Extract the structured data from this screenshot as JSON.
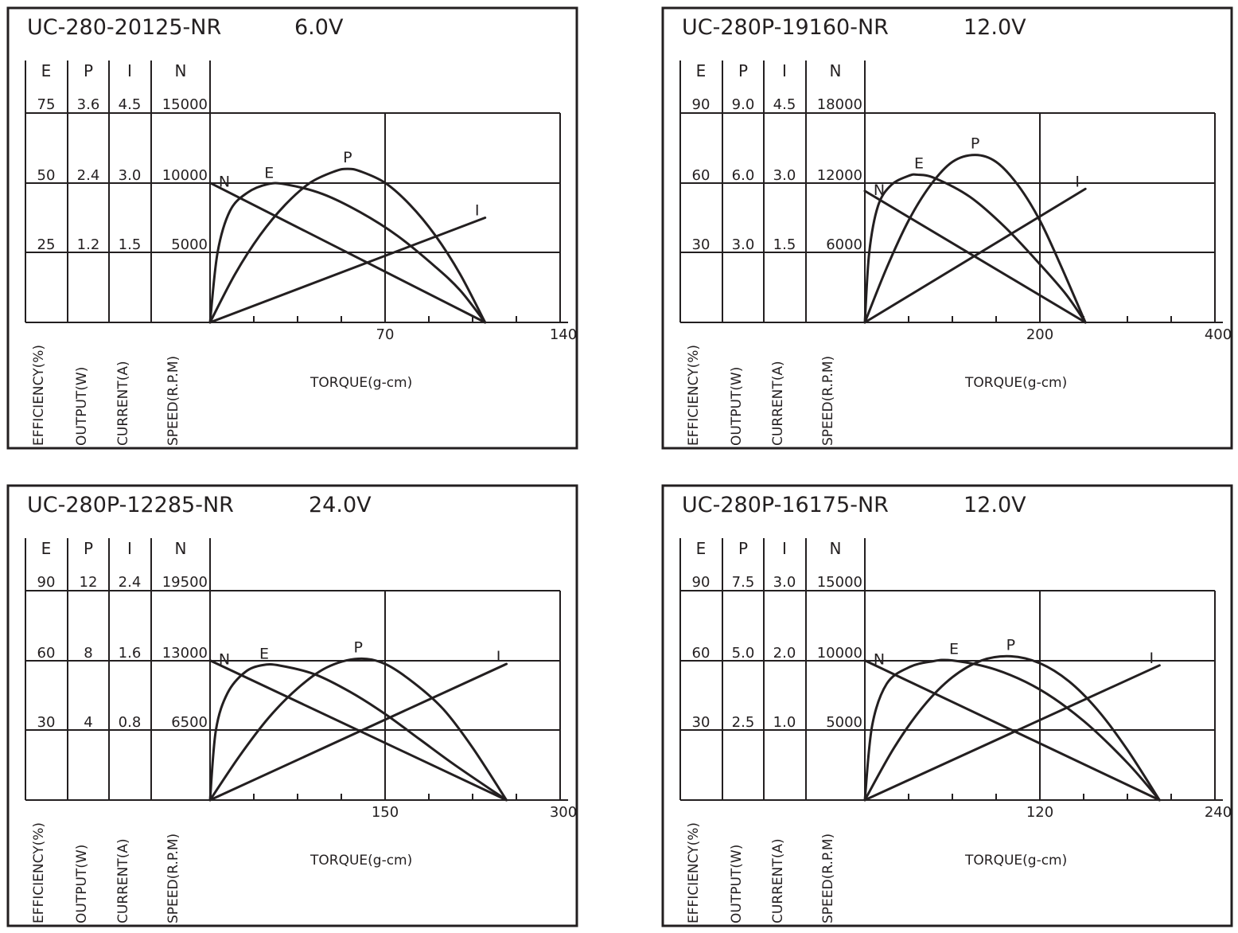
{
  "column_headers": [
    "E",
    "P",
    "I",
    "N"
  ],
  "axis_labels": [
    "EFFICIENCY(%)",
    "OUTPUT(W)",
    "CURRENT(A)",
    "SPEED(R.P.M)"
  ],
  "xlabel": "TORQUE(g-cm)",
  "curve_labels": [
    "N",
    "E",
    "P",
    "I"
  ],
  "chart_data": [
    {
      "type": "line",
      "title": "UC-280-20125-NR",
      "voltage": "6.0V",
      "xlabel": "TORQUE(g-cm)",
      "xlim": [
        0,
        140
      ],
      "x_ticks": [
        "70",
        "140"
      ],
      "scale_labels": {
        "E": [
          "25",
          "50",
          "75"
        ],
        "P": [
          "1.2",
          "2.4",
          "3.6"
        ],
        "I": [
          "1.5",
          "3.0",
          "4.5"
        ],
        "N": [
          "5000",
          "10000",
          "15000"
        ]
      },
      "ylim": {
        "E": [
          0,
          75
        ],
        "P": [
          0,
          3.6
        ],
        "I": [
          0,
          4.5
        ],
        "N": [
          0,
          15000
        ]
      },
      "series": [
        {
          "name": "N",
          "axis": "N",
          "x": [
            0,
            110
          ],
          "y": [
            10000,
            0
          ]
        },
        {
          "name": "I",
          "axis": "I",
          "x": [
            0,
            110
          ],
          "y": [
            0,
            2.25
          ]
        },
        {
          "name": "E",
          "axis": "E",
          "x": [
            0,
            3,
            8,
            15,
            23,
            30,
            45,
            60,
            75,
            90,
            100,
            110
          ],
          "y": [
            0,
            25,
            40,
            46.5,
            49.5,
            49.5,
            46,
            39.5,
            31,
            20,
            11.5,
            0
          ]
        },
        {
          "name": "P",
          "axis": "P",
          "x": [
            0,
            10,
            20,
            30,
            40,
            50,
            55,
            60,
            70,
            80,
            90,
            100,
            110
          ],
          "y": [
            0,
            0.83,
            1.5,
            2.02,
            2.4,
            2.6,
            2.64,
            2.6,
            2.4,
            2.02,
            1.5,
            0.83,
            0
          ]
        }
      ]
    },
    {
      "type": "line",
      "title": "UC-280P-19160-NR",
      "voltage": "12.0V",
      "xlabel": "TORQUE(g-cm)",
      "xlim": [
        0,
        400
      ],
      "x_ticks": [
        "200",
        "400"
      ],
      "scale_labels": {
        "E": [
          "30",
          "60",
          "90"
        ],
        "P": [
          "3.0",
          "6.0",
          "9.0"
        ],
        "I": [
          "1.5",
          "3.0",
          "4.5"
        ],
        "N": [
          "6000",
          "12000",
          "18000"
        ]
      },
      "ylim": {
        "E": [
          0,
          90
        ],
        "P": [
          0,
          9
        ],
        "I": [
          0,
          4.5
        ],
        "N": [
          0,
          18000
        ]
      },
      "series": [
        {
          "name": "N",
          "axis": "N",
          "x": [
            0,
            252
          ],
          "y": [
            11300,
            0
          ]
        },
        {
          "name": "I",
          "axis": "I",
          "x": [
            0,
            252
          ],
          "y": [
            0,
            2.87
          ]
        },
        {
          "name": "E",
          "axis": "E",
          "x": [
            0,
            5,
            15,
            30,
            50,
            60,
            80,
            120,
            160,
            200,
            230,
            252
          ],
          "y": [
            0,
            30,
            50,
            59,
            63,
            63.5,
            62,
            54,
            41,
            25,
            12,
            0
          ]
        },
        {
          "name": "P",
          "axis": "P",
          "x": [
            0,
            25,
            50,
            75,
            100,
            126,
            150,
            175,
            200,
            225,
            252
          ],
          "y": [
            0,
            2.35,
            4.38,
            5.9,
            6.9,
            7.2,
            6.9,
            5.9,
            4.38,
            2.35,
            0
          ]
        }
      ]
    },
    {
      "type": "line",
      "title": "UC-280P-12285-NR",
      "voltage": "24.0V",
      "xlabel": "TORQUE(g-cm)",
      "xlim": [
        0,
        300
      ],
      "x_ticks": [
        "150",
        "300"
      ],
      "scale_labels": {
        "E": [
          "30",
          "60",
          "90"
        ],
        "P": [
          "4",
          "8",
          "12"
        ],
        "I": [
          "0.8",
          "1.6",
          "2.4"
        ],
        "N": [
          "6500",
          "13000",
          "19500"
        ]
      },
      "ylim": {
        "E": [
          0,
          90
        ],
        "P": [
          0,
          12
        ],
        "I": [
          0,
          2.4
        ],
        "N": [
          0,
          19500
        ]
      },
      "series": [
        {
          "name": "N",
          "axis": "N",
          "x": [
            0,
            254
          ],
          "y": [
            13000,
            0
          ]
        },
        {
          "name": "I",
          "axis": "I",
          "x": [
            0,
            254
          ],
          "y": [
            0,
            1.56
          ]
        },
        {
          "name": "E",
          "axis": "E",
          "x": [
            0,
            5,
            15,
            30,
            45,
            60,
            90,
            120,
            150,
            180,
            210,
            254
          ],
          "y": [
            0,
            30,
            46,
            55,
            58,
            57.8,
            54,
            46.5,
            37,
            26,
            15,
            0
          ]
        },
        {
          "name": "P",
          "axis": "P",
          "x": [
            0,
            25,
            50,
            75,
            100,
            127,
            150,
            175,
            200,
            225,
            254
          ],
          "y": [
            0,
            2.5,
            4.7,
            6.4,
            7.6,
            8.1,
            7.8,
            6.7,
            5.2,
            3.0,
            0
          ]
        }
      ]
    },
    {
      "type": "line",
      "title": "UC-280P-16175-NR",
      "voltage": "12.0V",
      "xlabel": "TORQUE(g-cm)",
      "xlim": [
        0,
        240
      ],
      "x_ticks": [
        "120",
        "240"
      ],
      "scale_labels": {
        "E": [
          "30",
          "60",
          "90"
        ],
        "P": [
          "2.5",
          "5.0",
          "7.5"
        ],
        "I": [
          "1.0",
          "2.0",
          "3.0"
        ],
        "N": [
          "5000",
          "10000",
          "15000"
        ]
      },
      "ylim": {
        "E": [
          0,
          90
        ],
        "P": [
          0,
          7.5
        ],
        "I": [
          0,
          3.0
        ],
        "N": [
          0,
          15000
        ]
      },
      "series": [
        {
          "name": "N",
          "axis": "N",
          "x": [
            0,
            202
          ],
          "y": [
            10000,
            0
          ]
        },
        {
          "name": "I",
          "axis": "I",
          "x": [
            0,
            202
          ],
          "y": [
            0,
            1.93
          ]
        },
        {
          "name": "E",
          "axis": "E",
          "x": [
            0,
            5,
            15,
            30,
            45,
            60,
            90,
            120,
            150,
            180,
            202
          ],
          "y": [
            0,
            32,
            50,
            57,
            59.5,
            60,
            56,
            47.5,
            34,
            16,
            0
          ]
        },
        {
          "name": "P",
          "axis": "P",
          "x": [
            0,
            20,
            40,
            60,
            80,
            100,
            120,
            140,
            160,
            180,
            202
          ],
          "y": [
            0,
            1.87,
            3.35,
            4.4,
            5.0,
            5.15,
            4.9,
            4.25,
            3.2,
            1.8,
            0
          ]
        }
      ]
    }
  ]
}
